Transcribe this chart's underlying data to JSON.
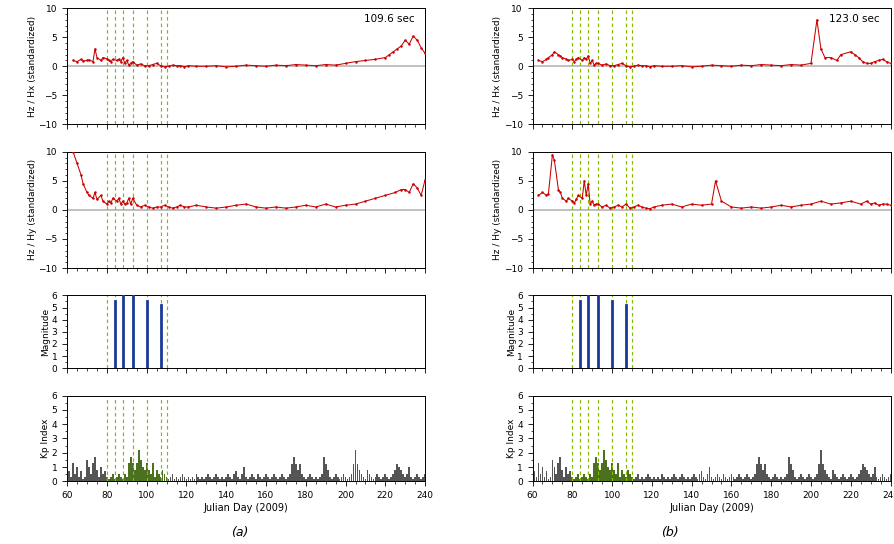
{
  "xlim": [
    60,
    240
  ],
  "xticks": [
    60,
    80,
    100,
    120,
    140,
    160,
    180,
    200,
    220,
    240
  ],
  "xlabel": "Julian Day (2009)",
  "panel_a_label": "(a)",
  "panel_b_label": "(b)",
  "period_a": "109.6 sec",
  "period_b": "123.0 sec",
  "green_dashed_lines": [
    80,
    84,
    88,
    93,
    100,
    107,
    110
  ],
  "earthquake_days_a": [
    84,
    88,
    93,
    100,
    107
  ],
  "earthquake_mags_a": [
    5.5,
    6.2,
    6.1,
    5.5,
    5.2
  ],
  "earthquake_days_b": [
    84,
    88,
    93,
    100,
    107
  ],
  "earthquake_mags_b": [
    5.5,
    6.2,
    6.1,
    5.5,
    5.2
  ],
  "hzhx_a_days": [
    63,
    65,
    67,
    68,
    70,
    71,
    73,
    74,
    75,
    77,
    78,
    80,
    81,
    82,
    83,
    85,
    86,
    87,
    88,
    89,
    90,
    91,
    92,
    93,
    95,
    97,
    99,
    101,
    103,
    105,
    107,
    109,
    111,
    113,
    115,
    117,
    119,
    121,
    125,
    130,
    135,
    140,
    145,
    150,
    155,
    160,
    165,
    170,
    175,
    180,
    185,
    190,
    195,
    200,
    205,
    210,
    215,
    220,
    222,
    224,
    226,
    228,
    230,
    232,
    234,
    236,
    238,
    240
  ],
  "hzhx_a_vals": [
    1.0,
    0.8,
    1.2,
    0.9,
    1.0,
    1.1,
    0.8,
    3.0,
    1.5,
    1.0,
    1.5,
    1.3,
    1.0,
    0.8,
    1.2,
    1.0,
    1.2,
    0.8,
    1.5,
    0.5,
    1.0,
    0.2,
    0.5,
    0.8,
    0.2,
    0.4,
    0.1,
    0.1,
    0.3,
    0.5,
    0.1,
    -0.1,
    0.0,
    0.2,
    0.1,
    0.1,
    -0.1,
    0.1,
    0.0,
    0.0,
    0.1,
    -0.1,
    0.0,
    0.2,
    0.1,
    0.0,
    0.2,
    0.1,
    0.3,
    0.2,
    0.1,
    0.3,
    0.2,
    0.5,
    0.8,
    1.0,
    1.2,
    1.5,
    2.0,
    2.5,
    3.0,
    3.5,
    4.5,
    3.8,
    5.2,
    4.5,
    3.2,
    2.2
  ],
  "hzhy_a_days": [
    63,
    65,
    67,
    68,
    70,
    71,
    73,
    74,
    75,
    77,
    78,
    80,
    81,
    82,
    83,
    85,
    86,
    87,
    88,
    89,
    90,
    91,
    92,
    93,
    95,
    97,
    99,
    101,
    103,
    105,
    107,
    109,
    111,
    113,
    115,
    117,
    119,
    121,
    125,
    130,
    135,
    140,
    145,
    150,
    155,
    160,
    165,
    170,
    175,
    180,
    185,
    190,
    195,
    200,
    205,
    210,
    215,
    220,
    225,
    228,
    230,
    232,
    234,
    236,
    238,
    240
  ],
  "hzhy_a_vals": [
    10.0,
    8.0,
    6.0,
    4.5,
    3.0,
    2.5,
    2.0,
    3.0,
    1.8,
    2.5,
    1.5,
    1.0,
    1.5,
    1.2,
    2.0,
    1.5,
    2.0,
    1.0,
    1.5,
    1.0,
    1.2,
    2.0,
    1.0,
    2.0,
    0.8,
    0.5,
    0.8,
    0.5,
    0.3,
    0.5,
    0.5,
    0.8,
    0.5,
    0.3,
    0.5,
    0.8,
    0.5,
    0.5,
    0.8,
    0.5,
    0.3,
    0.5,
    0.8,
    1.0,
    0.5,
    0.3,
    0.5,
    0.3,
    0.5,
    0.8,
    0.5,
    1.0,
    0.5,
    0.8,
    1.0,
    1.5,
    2.0,
    2.5,
    3.0,
    3.5,
    3.5,
    3.0,
    4.5,
    3.8,
    2.5,
    5.2
  ],
  "hzhx_b_days": [
    63,
    65,
    67,
    68,
    70,
    71,
    73,
    74,
    75,
    77,
    78,
    80,
    81,
    82,
    83,
    85,
    86,
    87,
    88,
    89,
    90,
    91,
    92,
    93,
    95,
    97,
    99,
    101,
    103,
    105,
    107,
    109,
    111,
    113,
    115,
    117,
    119,
    121,
    125,
    130,
    135,
    140,
    145,
    150,
    155,
    160,
    165,
    170,
    175,
    180,
    185,
    190,
    195,
    200,
    203,
    205,
    207,
    210,
    213,
    215,
    220,
    222,
    224,
    226,
    228,
    230,
    232,
    234,
    236,
    238,
    240
  ],
  "hzhx_b_vals": [
    1.0,
    0.8,
    1.2,
    1.5,
    2.0,
    2.5,
    2.0,
    1.8,
    1.5,
    1.2,
    1.0,
    1.2,
    0.8,
    1.2,
    1.5,
    1.0,
    1.5,
    1.2,
    1.8,
    0.5,
    1.0,
    0.2,
    0.5,
    0.5,
    0.2,
    0.4,
    0.1,
    0.1,
    0.3,
    0.5,
    0.1,
    -0.1,
    0.0,
    0.2,
    0.1,
    0.1,
    -0.1,
    0.1,
    0.0,
    0.0,
    0.1,
    -0.1,
    0.0,
    0.2,
    0.1,
    0.0,
    0.2,
    0.1,
    0.3,
    0.2,
    0.1,
    0.3,
    0.2,
    0.5,
    8.0,
    3.0,
    1.5,
    1.5,
    1.0,
    2.0,
    2.5,
    2.0,
    1.5,
    0.8,
    0.5,
    0.5,
    0.8,
    1.0,
    1.2,
    0.8,
    0.5
  ],
  "hzhy_b_days": [
    63,
    65,
    67,
    68,
    70,
    71,
    73,
    74,
    75,
    77,
    78,
    80,
    81,
    82,
    83,
    85,
    86,
    87,
    88,
    89,
    90,
    91,
    92,
    93,
    95,
    97,
    99,
    101,
    103,
    105,
    107,
    109,
    111,
    113,
    115,
    117,
    119,
    121,
    125,
    130,
    135,
    140,
    145,
    150,
    152,
    155,
    160,
    165,
    170,
    175,
    180,
    185,
    190,
    195,
    200,
    205,
    210,
    215,
    220,
    225,
    228,
    230,
    232,
    234,
    236,
    238,
    240
  ],
  "hzhy_b_vals": [
    2.5,
    3.0,
    2.5,
    2.8,
    9.5,
    8.5,
    3.5,
    3.0,
    2.0,
    1.5,
    2.0,
    1.5,
    1.2,
    1.8,
    2.5,
    2.0,
    5.0,
    2.5,
    4.5,
    1.0,
    1.5,
    0.8,
    1.0,
    1.0,
    0.5,
    0.8,
    0.3,
    0.5,
    0.8,
    0.5,
    1.0,
    0.3,
    0.5,
    0.8,
    0.5,
    0.3,
    0.2,
    0.5,
    0.8,
    1.0,
    0.5,
    1.0,
    0.8,
    1.0,
    5.0,
    1.5,
    0.5,
    0.3,
    0.5,
    0.3,
    0.5,
    0.8,
    0.5,
    0.8,
    1.0,
    1.5,
    1.0,
    1.2,
    1.5,
    1.0,
    1.5,
    1.0,
    1.2,
    0.8,
    1.0,
    1.0,
    0.8
  ],
  "kp_days": [
    61,
    62,
    63,
    64,
    65,
    66,
    67,
    68,
    69,
    70,
    71,
    72,
    73,
    74,
    75,
    76,
    77,
    78,
    79,
    80,
    81,
    82,
    83,
    84,
    85,
    86,
    87,
    88,
    89,
    90,
    91,
    92,
    93,
    94,
    95,
    96,
    97,
    98,
    99,
    100,
    101,
    102,
    103,
    104,
    105,
    106,
    107,
    108,
    109,
    110,
    111,
    112,
    113,
    114,
    115,
    116,
    117,
    118,
    119,
    120,
    121,
    122,
    123,
    124,
    125,
    126,
    127,
    128,
    129,
    130,
    131,
    132,
    133,
    134,
    135,
    136,
    137,
    138,
    139,
    140,
    141,
    142,
    143,
    144,
    145,
    146,
    147,
    148,
    149,
    150,
    151,
    152,
    153,
    154,
    155,
    156,
    157,
    158,
    159,
    160,
    161,
    162,
    163,
    164,
    165,
    166,
    167,
    168,
    169,
    170,
    171,
    172,
    173,
    174,
    175,
    176,
    177,
    178,
    179,
    180,
    181,
    182,
    183,
    184,
    185,
    186,
    187,
    188,
    189,
    190,
    191,
    192,
    193,
    194,
    195,
    196,
    197,
    198,
    199,
    200,
    201,
    202,
    203,
    204,
    205,
    206,
    207,
    208,
    209,
    210,
    211,
    212,
    213,
    214,
    215,
    216,
    217,
    218,
    219,
    220,
    221,
    222,
    223,
    224,
    225,
    226,
    227,
    228,
    229,
    230,
    231,
    232,
    233,
    234,
    235,
    236,
    237,
    238,
    239,
    240
  ],
  "kp_vals": [
    0.7,
    0.3,
    1.3,
    0.5,
    1.0,
    0.3,
    0.7,
    0.2,
    0.3,
    1.5,
    1.0,
    0.5,
    1.3,
    1.7,
    0.8,
    0.3,
    1.0,
    0.5,
    0.7,
    0.3,
    0.2,
    0.3,
    0.5,
    0.2,
    0.3,
    0.5,
    0.3,
    0.2,
    0.5,
    0.3,
    1.3,
    1.7,
    1.3,
    0.8,
    1.3,
    2.2,
    1.5,
    1.0,
    0.8,
    1.3,
    0.8,
    0.5,
    1.3,
    0.3,
    0.8,
    0.5,
    0.3,
    0.8,
    0.5,
    0.3,
    0.2,
    0.3,
    0.5,
    0.2,
    0.3,
    0.2,
    0.3,
    0.5,
    0.3,
    0.2,
    0.3,
    0.2,
    0.3,
    0.2,
    0.5,
    0.3,
    0.2,
    0.3,
    0.2,
    0.3,
    0.5,
    0.3,
    0.2,
    0.3,
    0.5,
    0.3,
    0.2,
    0.3,
    0.2,
    0.3,
    0.5,
    0.3,
    0.2,
    0.5,
    0.7,
    0.3,
    0.2,
    0.5,
    1.0,
    0.3,
    0.2,
    0.3,
    0.5,
    0.3,
    0.2,
    0.5,
    0.3,
    0.2,
    0.3,
    0.5,
    0.3,
    0.2,
    0.3,
    0.5,
    0.3,
    0.2,
    0.3,
    0.5,
    0.3,
    0.2,
    0.3,
    0.5,
    1.2,
    1.7,
    1.2,
    0.8,
    1.2,
    0.5,
    0.3,
    0.2,
    0.3,
    0.5,
    0.3,
    0.2,
    0.3,
    0.2,
    0.3,
    0.5,
    1.7,
    1.2,
    0.8,
    0.3,
    0.2,
    0.3,
    0.5,
    0.3,
    0.2,
    0.3,
    0.5,
    0.3,
    0.2,
    0.3,
    0.5,
    1.2,
    2.2,
    1.2,
    0.8,
    0.5,
    0.3,
    0.2,
    0.8,
    0.5,
    0.3,
    0.2,
    0.3,
    0.5,
    0.3,
    0.2,
    0.3,
    0.5,
    0.3,
    0.2,
    0.3,
    0.5,
    0.8,
    1.2,
    1.0,
    0.8,
    0.5,
    0.3,
    0.5,
    1.0,
    0.3,
    0.2,
    0.3,
    0.5,
    0.3,
    0.2,
    0.3,
    0.5
  ],
  "kp_highlight_days": [
    80,
    81,
    82,
    83,
    84,
    85,
    86,
    87,
    88,
    89,
    90,
    91,
    92,
    93,
    94,
    95,
    96,
    97,
    98,
    99,
    100,
    101,
    102,
    103,
    104,
    105,
    106,
    107,
    108,
    109,
    110
  ],
  "line_color": "#cc0000",
  "marker_color": "#cc0000",
  "blue_bar_color": "#1a3a99",
  "kp_bar_color": "#555555",
  "kp_highlight_color": "#4a7020",
  "green_dashed_color": "#88bb00",
  "bg_color": "#ffffff",
  "ylim_hz": [
    -10,
    10
  ],
  "yticks_hz": [
    -10,
    -5,
    0,
    5,
    10
  ],
  "ylim_mag": [
    0,
    6
  ],
  "yticks_mag": [
    0,
    1,
    2,
    3,
    4,
    5,
    6
  ],
  "ylim_kp": [
    0,
    6
  ],
  "yticks_kp": [
    0,
    1,
    2,
    3,
    4,
    5,
    6
  ]
}
